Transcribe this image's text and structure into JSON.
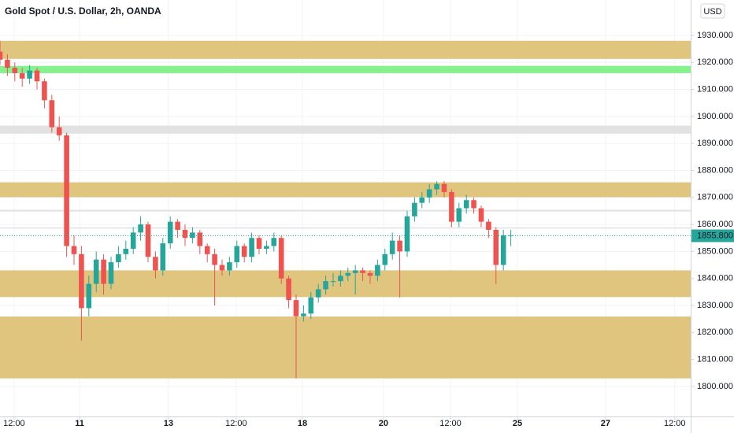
{
  "chart_data": {
    "type": "candlestick",
    "title": "Gold Spot / U.S. Dollar, 2h, OANDA",
    "currency": "USD",
    "up_color": "#26a69a",
    "down_color": "#ef5350",
    "grid": true,
    "x": [
      0,
      2,
      4,
      6,
      8,
      10,
      12,
      14,
      16,
      18,
      20,
      22,
      24,
      26,
      28,
      30,
      32,
      34,
      36,
      38,
      40,
      42,
      44,
      46,
      48,
      50,
      52,
      54,
      56,
      58,
      60,
      62,
      64,
      66,
      68,
      70,
      72,
      74,
      76,
      78,
      80,
      82,
      84,
      86,
      88,
      90,
      92,
      94,
      96,
      98,
      100,
      102,
      104,
      106,
      108,
      110,
      112,
      114,
      116,
      118,
      120,
      122,
      124,
      126,
      128,
      130,
      132,
      134,
      136,
      138
    ],
    "open": [
      1924,
      1921,
      1918,
      1916,
      1914,
      1917,
      1913,
      1906,
      1896,
      1893,
      1852,
      1849,
      1829,
      1838,
      1847,
      1838,
      1846,
      1849,
      1851,
      1857,
      1860,
      1848,
      1843,
      1853,
      1861,
      1858,
      1855,
      1857,
      1852,
      1849,
      1845,
      1843,
      1846,
      1852,
      1848,
      1855,
      1851,
      1852,
      1855,
      1840,
      1832,
      1826,
      1827,
      1833,
      1836,
      1839,
      1839,
      1841,
      1842,
      1843,
      1842,
      1841,
      1845,
      1849,
      1854,
      1850,
      1863,
      1868,
      1870,
      1873,
      1875,
      1872,
      1861,
      1866,
      1869,
      1866,
      1861,
      1858,
      1845,
      1856
    ],
    "high": [
      1928,
      1923,
      1920,
      1918,
      1919,
      1918,
      1914,
      1908,
      1900,
      1894,
      1856,
      1852,
      1841,
      1850,
      1849,
      1848,
      1852,
      1854,
      1859,
      1863,
      1861,
      1850,
      1855,
      1863,
      1862,
      1860,
      1859,
      1858,
      1853,
      1851,
      1847,
      1848,
      1854,
      1853,
      1857,
      1856,
      1854,
      1857,
      1856,
      1841,
      1834,
      1830,
      1835,
      1838,
      1841,
      1842,
      1843,
      1844,
      1845,
      1844,
      1843,
      1847,
      1851,
      1857,
      1856,
      1865,
      1870,
      1872,
      1875,
      1876,
      1876,
      1873,
      1868,
      1871,
      1870,
      1867,
      1862,
      1859,
      1858,
      1858
    ],
    "low": [
      1919,
      1915,
      1913,
      1911,
      1912,
      1910,
      1903,
      1894,
      1891,
      1848,
      1845,
      1817,
      1826,
      1835,
      1834,
      1836,
      1844,
      1847,
      1849,
      1854,
      1846,
      1840,
      1841,
      1851,
      1855,
      1852,
      1853,
      1849,
      1846,
      1830,
      1841,
      1841,
      1844,
      1846,
      1846,
      1849,
      1849,
      1850,
      1838,
      1829,
      1803,
      1824,
      1825,
      1831,
      1834,
      1837,
      1837,
      1839,
      1834,
      1839,
      1838,
      1839,
      1843,
      1847,
      1833,
      1848,
      1861,
      1866,
      1868,
      1871,
      1870,
      1859,
      1859,
      1864,
      1864,
      1859,
      1855,
      1838,
      1843,
      1852
    ],
    "close": [
      1921,
      1918,
      1916,
      1914,
      1917,
      1913,
      1906,
      1896,
      1893,
      1852,
      1849,
      1829,
      1838,
      1847,
      1838,
      1846,
      1849,
      1851,
      1857,
      1860,
      1848,
      1843,
      1853,
      1861,
      1858,
      1855,
      1857,
      1852,
      1849,
      1845,
      1843,
      1846,
      1852,
      1848,
      1855,
      1851,
      1852,
      1855,
      1840,
      1832,
      1826,
      1827,
      1833,
      1836,
      1839,
      1839,
      1841,
      1842,
      1843,
      1842,
      1841,
      1845,
      1849,
      1854,
      1850,
      1863,
      1868,
      1870,
      1873,
      1875,
      1872,
      1861,
      1866,
      1869,
      1866,
      1861,
      1858,
      1845,
      1856,
      1856
    ],
    "xlim": [
      0,
      186.6
    ],
    "xticks": [
      {
        "value": 3.8,
        "label": "12:00"
      },
      {
        "value": 21.5,
        "label": "11"
      },
      {
        "value": 45.5,
        "label": "13"
      },
      {
        "value": 63.8,
        "label": "12:00"
      },
      {
        "value": 81.7,
        "label": "18"
      },
      {
        "value": 103.6,
        "label": "20"
      },
      {
        "value": 121.7,
        "label": "12:00"
      },
      {
        "value": 139.8,
        "label": "25"
      },
      {
        "value": 163.6,
        "label": "27"
      },
      {
        "value": 182.3,
        "label": "12:00"
      }
    ],
    "ylim": [
      1788.9,
      1943.1
    ],
    "yticks": [
      {
        "value": 1800,
        "label": "1800.000"
      },
      {
        "value": 1810,
        "label": "1810.000"
      },
      {
        "value": 1820,
        "label": "1820.000"
      },
      {
        "value": 1830,
        "label": "1830.000"
      },
      {
        "value": 1840,
        "label": "1840.000"
      },
      {
        "value": 1850,
        "label": "1850.000"
      },
      {
        "value": 1860,
        "label": "1860.000"
      },
      {
        "value": 1870,
        "label": "1870.000"
      },
      {
        "value": 1880,
        "label": "1880.000"
      },
      {
        "value": 1890,
        "label": "1890.000"
      },
      {
        "value": 1900,
        "label": "1900.000"
      },
      {
        "value": 1910,
        "label": "1910.000"
      },
      {
        "value": 1920,
        "label": "1920.000"
      },
      {
        "value": 1930,
        "label": "1930.000"
      }
    ],
    "zones": [
      {
        "from": 1921.3,
        "to": 1928.0,
        "color": "#dfc57e"
      },
      {
        "from": 1916.0,
        "to": 1918.7,
        "color": "#86f28e"
      },
      {
        "from": 1893.6,
        "to": 1896.6,
        "color": "#e2e2e2"
      },
      {
        "from": 1870.1,
        "to": 1875.6,
        "color": "#dfc57e"
      },
      {
        "from": 1864.8,
        "to": 1865.4,
        "color": "#e2e2e2"
      },
      {
        "from": 1858.4,
        "to": 1859.0,
        "color": "#e8e8e8"
      },
      {
        "from": 1833.1,
        "to": 1843.0,
        "color": "#dfc57e"
      },
      {
        "from": 1803.0,
        "to": 1825.9,
        "color": "#dfc57e"
      }
    ],
    "last_price": {
      "value": 1855.8,
      "label": "1855.800",
      "color": "#26a69a"
    }
  }
}
